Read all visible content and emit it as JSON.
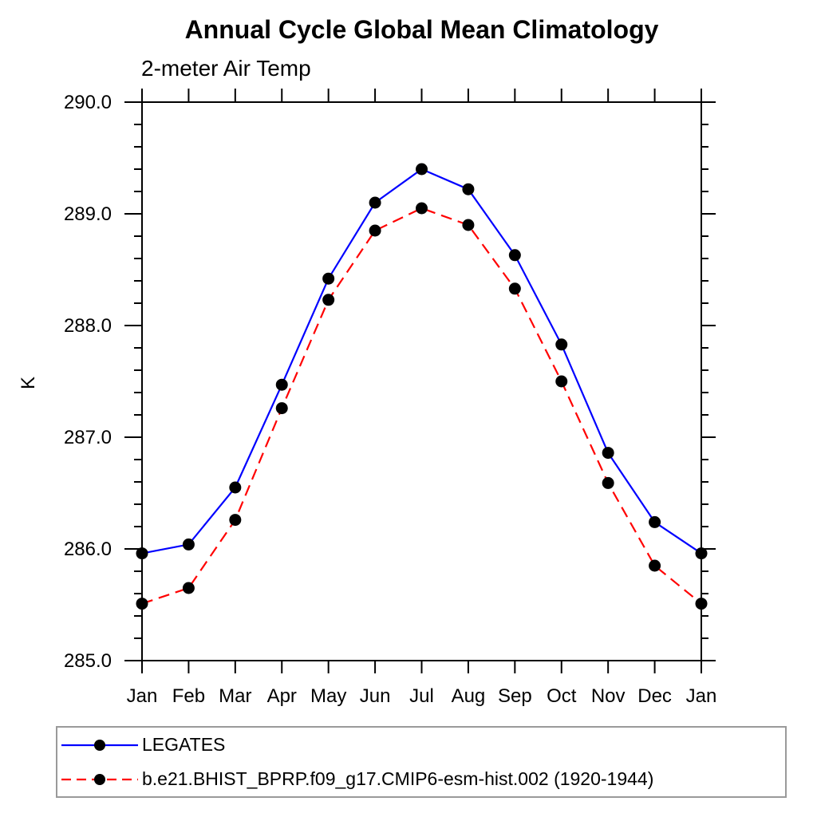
{
  "chart_data": {
    "type": "line",
    "title": "Annual Cycle Global Mean Climatology",
    "subtitle": "2-meter Air Temp",
    "ylabel": "K",
    "xlabel": "",
    "x_categories": [
      "Jan",
      "Feb",
      "Mar",
      "Apr",
      "May",
      "Jun",
      "Jul",
      "Aug",
      "Sep",
      "Oct",
      "Nov",
      "Dec",
      "Jan"
    ],
    "ylim": [
      285.0,
      290.0
    ],
    "y_major_ticks": [
      285.0,
      286.0,
      287.0,
      288.0,
      289.0,
      290.0
    ],
    "y_tick_labels": [
      "285.0",
      "286.0",
      "287.0",
      "288.0",
      "289.0",
      "290.0"
    ],
    "y_minor_step": 0.2,
    "grid": false,
    "legend_position": "bottom-left",
    "frame_color": "#000000",
    "marker": "filled-circle",
    "marker_color": "#000000",
    "series": [
      {
        "name": "LEGATES",
        "color": "#0000ff",
        "line_style": "solid",
        "values": [
          285.96,
          286.04,
          286.55,
          287.47,
          288.42,
          289.1,
          289.4,
          289.22,
          288.63,
          287.83,
          286.86,
          286.24,
          285.96
        ]
      },
      {
        "name": "b.e21.BHIST_BPRP.f09_g17.CMIP6-esm-hist.002 (1920-1944)",
        "color": "#ff0000",
        "line_style": "dashed",
        "values": [
          285.51,
          285.65,
          286.26,
          287.26,
          288.23,
          288.85,
          289.05,
          288.9,
          288.33,
          287.5,
          286.59,
          285.85,
          285.51
        ]
      }
    ]
  }
}
